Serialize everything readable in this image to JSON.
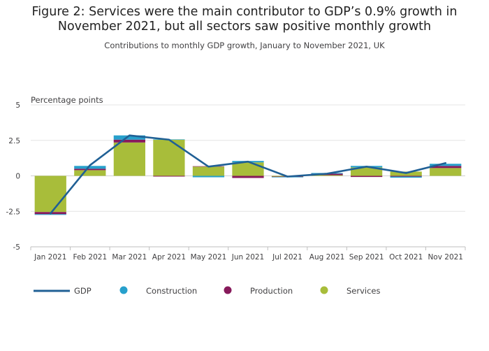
{
  "title": "Figure 2: Services were the main contributor to GDP’s 0.9% growth in November 2021, but all sectors saw positive monthly growth",
  "subtitle": "Contributions to monthly GDP growth, January to November 2021, UK",
  "chart_data": {
    "type": "bar",
    "stacked": true,
    "title": "Figure 2: Services were the main contributor to GDP’s 0.9% growth in November 2021, but all sectors saw positive monthly growth",
    "subtitle": "Contributions to monthly GDP growth, January to November 2021, UK",
    "ylabel": "Percentage points",
    "xlabel": "",
    "ylim": [
      -5,
      5
    ],
    "yticks": [
      5,
      2.5,
      0,
      -2.5,
      -5
    ],
    "ytick_labels": [
      "5",
      "2.5",
      "0",
      "-2.5",
      "-5"
    ],
    "grid": true,
    "legend_position": "bottom",
    "categories": [
      "Jan 2021",
      "Feb 2021",
      "Mar 2021",
      "Apr 2021",
      "May 2021",
      "Jun 2021",
      "Jul 2021",
      "Aug 2021",
      "Sep 2021",
      "Oct 2021",
      "Nov 2021"
    ],
    "series": [
      {
        "name": "Services",
        "type": "bar",
        "color": "#a8bd3a",
        "values": [
          -2.55,
          0.4,
          2.35,
          2.55,
          0.65,
          0.95,
          -0.05,
          0.05,
          0.6,
          0.3,
          0.55
        ]
      },
      {
        "name": "Production",
        "type": "bar",
        "color": "#871a5b",
        "values": [
          -0.15,
          0.1,
          0.2,
          -0.05,
          0.03,
          -0.15,
          -0.03,
          0.1,
          -0.08,
          -0.05,
          0.15
        ]
      },
      {
        "name": "Construction",
        "type": "bar",
        "color": "#27a0cc",
        "values": [
          -0.05,
          0.2,
          0.3,
          0.02,
          -0.1,
          0.1,
          -0.02,
          0.05,
          0.1,
          -0.08,
          0.15
        ]
      },
      {
        "name": "GDP",
        "type": "line",
        "color": "#206095",
        "values": [
          -2.65,
          0.75,
          2.85,
          2.55,
          0.65,
          1.0,
          -0.05,
          0.15,
          0.65,
          0.2,
          0.9
        ]
      }
    ],
    "legend": [
      {
        "name": "GDP",
        "marker": "line",
        "color": "#206095"
      },
      {
        "name": "Construction",
        "marker": "dot",
        "color": "#27a0cc"
      },
      {
        "name": "Production",
        "marker": "dot",
        "color": "#871a5b"
      },
      {
        "name": "Services",
        "marker": "dot",
        "color": "#a8bd3a"
      }
    ]
  }
}
